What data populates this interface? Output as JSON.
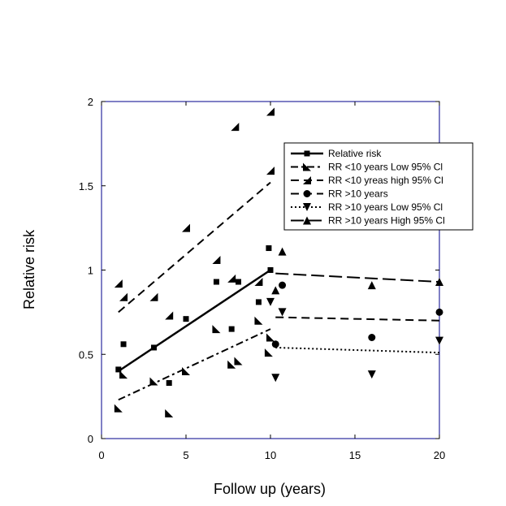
{
  "chart_data": {
    "type": "scatter",
    "title": "",
    "xlabel": "Follow up (years)",
    "ylabel": "Relative risk",
    "xlim": [
      0,
      20
    ],
    "ylim": [
      0,
      2
    ],
    "xticks": [
      0,
      5,
      10,
      15,
      20
    ],
    "yticks": [
      0,
      0.5,
      1,
      1.5,
      2
    ],
    "ytick_labels": [
      "0",
      "0.5",
      "1",
      "1.5",
      "2"
    ],
    "grid": false,
    "legend_position": "right",
    "frame_color": "#00008b",
    "series": [
      {
        "name": "Relative risk",
        "marker": "square",
        "line": "solid",
        "points": [
          [
            1.0,
            0.41
          ],
          [
            1.3,
            0.56
          ],
          [
            3.1,
            0.54
          ],
          [
            4.0,
            0.33
          ],
          [
            5.0,
            0.71
          ],
          [
            6.8,
            0.93
          ],
          [
            7.7,
            0.65
          ],
          [
            8.1,
            0.93
          ],
          [
            9.3,
            0.81
          ],
          [
            9.9,
            1.13
          ],
          [
            10.0,
            1.0
          ]
        ],
        "trend": [
          [
            1.0,
            0.4
          ],
          [
            10.0,
            1.0
          ]
        ]
      },
      {
        "name": "RR <10 years Low 95% Cl",
        "marker": "tri-left",
        "line": "dashdot",
        "points": [
          [
            1.0,
            0.18
          ],
          [
            1.3,
            0.38
          ],
          [
            3.1,
            0.34
          ],
          [
            4.0,
            0.15
          ],
          [
            5.0,
            0.4
          ],
          [
            6.8,
            0.65
          ],
          [
            7.7,
            0.44
          ],
          [
            8.1,
            0.46
          ],
          [
            9.3,
            0.7
          ],
          [
            9.9,
            0.51
          ],
          [
            10.0,
            0.6
          ]
        ],
        "trend": [
          [
            1.0,
            0.23
          ],
          [
            10.0,
            0.65
          ]
        ]
      },
      {
        "name": "RR <10 yreas high 95% Cl",
        "marker": "tri-up-right",
        "line": "dashed",
        "points": [
          [
            1.0,
            0.92
          ],
          [
            1.3,
            0.84
          ],
          [
            3.1,
            0.84
          ],
          [
            4.0,
            0.73
          ],
          [
            5.0,
            1.25
          ],
          [
            6.8,
            1.06
          ],
          [
            7.7,
            0.95
          ],
          [
            7.9,
            1.85
          ],
          [
            9.3,
            0.93
          ],
          [
            10.0,
            1.94
          ],
          [
            10.0,
            1.59
          ]
        ],
        "trend": [
          [
            1.0,
            0.75
          ],
          [
            10.0,
            1.52
          ]
        ]
      },
      {
        "name": "RR >10 years",
        "marker": "circle",
        "line": "dashed",
        "points": [
          [
            10.3,
            0.56
          ],
          [
            10.7,
            0.91
          ],
          [
            16.0,
            0.6
          ],
          [
            20.0,
            0.75
          ]
        ],
        "trend": [
          [
            10.3,
            0.72
          ],
          [
            20.0,
            0.7
          ]
        ]
      },
      {
        "name": "RR >10 years Low 95% Cl",
        "marker": "tri-down",
        "line": "dotted",
        "points": [
          [
            10.0,
            0.81
          ],
          [
            10.3,
            0.36
          ],
          [
            10.7,
            0.75
          ],
          [
            16.0,
            0.38
          ],
          [
            20.0,
            0.58
          ]
        ],
        "trend": [
          [
            10.3,
            0.54
          ],
          [
            20.0,
            0.51
          ]
        ]
      },
      {
        "name": "RR >10 years High 95% Cl",
        "marker": "tri-up",
        "line": "longdash",
        "points": [
          [
            10.3,
            0.88
          ],
          [
            10.7,
            1.11
          ],
          [
            16.0,
            0.91
          ],
          [
            20.0,
            0.93
          ]
        ],
        "trend": [
          [
            10.3,
            0.98
          ],
          [
            20.0,
            0.93
          ]
        ]
      }
    ]
  }
}
